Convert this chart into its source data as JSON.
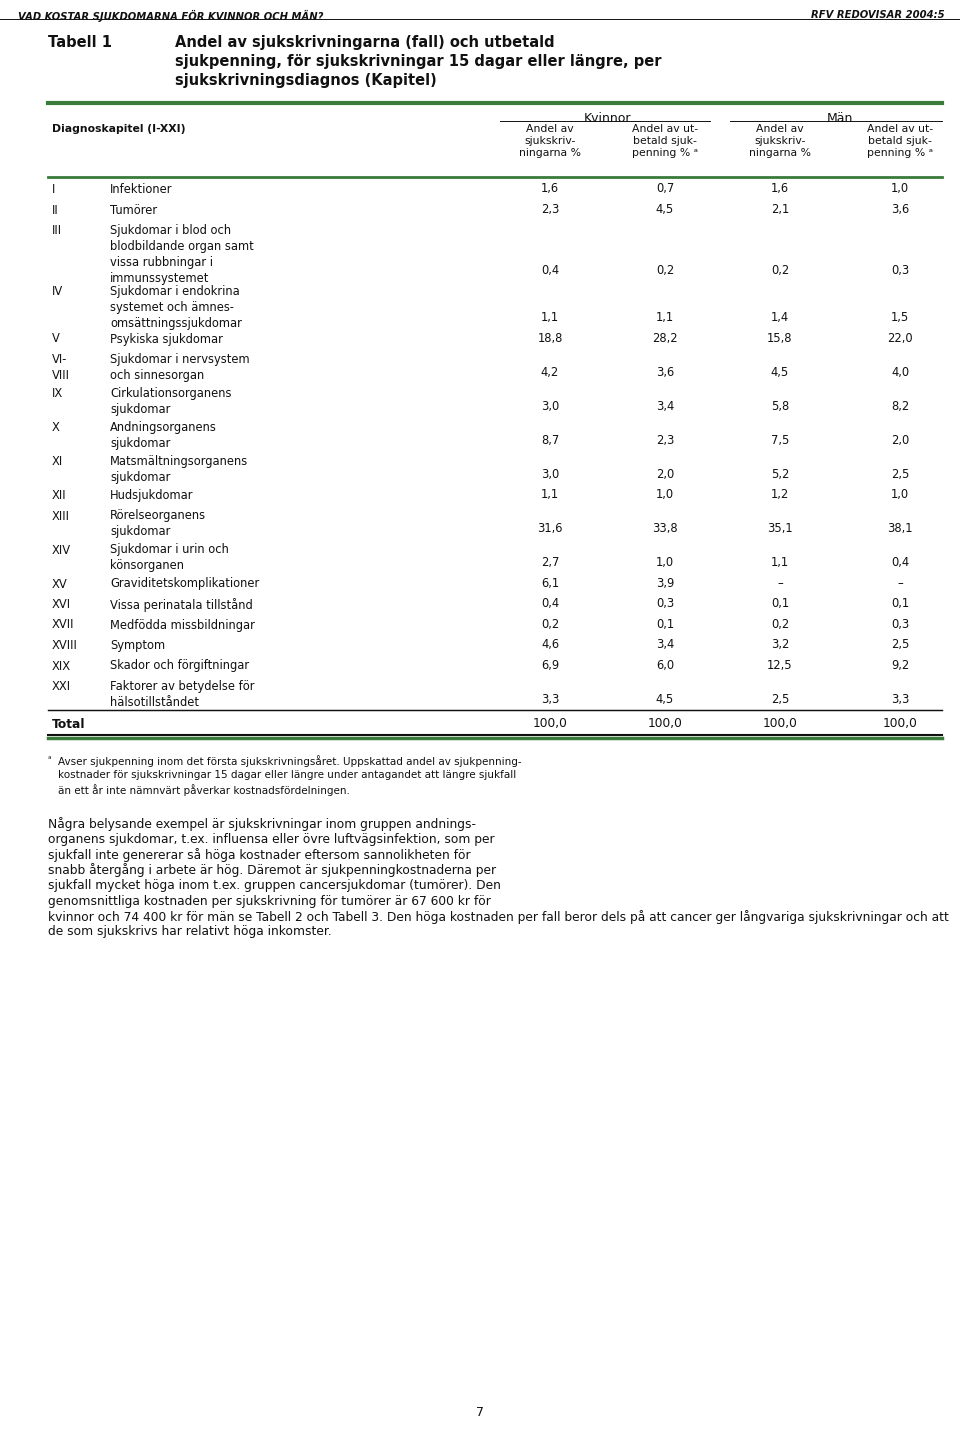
{
  "page_header_left": "VAD KOSTAR SJUKDOMARNA FÖR KVINNOR OCH MÄN?",
  "page_header_right": "RFV REDOVISAR 2004:5",
  "title_label": "Tabell 1",
  "title_text": "Andel av sjukskrivningarna (fall) och utbetald\nsjukpenning, för sjukskrivningar 15 dagar eller längre, per\nsjukskrivningsdiagnos (Kapitel)",
  "col_group1": "Kvinnor",
  "col_group2": "Män",
  "rows": [
    [
      "I",
      "Infektioner",
      "1,6",
      "0,7",
      "1,6",
      "1,0"
    ],
    [
      "II",
      "Tumörer",
      "2,3",
      "4,5",
      "2,1",
      "3,6"
    ],
    [
      "III",
      "Sjukdomar i blod och\nblodbildande organ samt\nvissa rubbningar i\nimmunssystemet",
      "0,4",
      "0,2",
      "0,2",
      "0,3"
    ],
    [
      "IV",
      "Sjukdomar i endokrina\nsystemet och ämnes-\nomsättningssjukdomar",
      "1,1",
      "1,1",
      "1,4",
      "1,5"
    ],
    [
      "V",
      "Psykiska sjukdomar",
      "18,8",
      "28,2",
      "15,8",
      "22,0"
    ],
    [
      "VI-\nVIII",
      "Sjukdomar i nervsystem\noch sinnesorgan",
      "4,2",
      "3,6",
      "4,5",
      "4,0"
    ],
    [
      "IX",
      "Cirkulationsorganens\nsjukdomar",
      "3,0",
      "3,4",
      "5,8",
      "8,2"
    ],
    [
      "X",
      "Andningsorganens\nsjukdomar",
      "8,7",
      "2,3",
      "7,5",
      "2,0"
    ],
    [
      "XI",
      "Matsmältningsorganens\nsjukdomar",
      "3,0",
      "2,0",
      "5,2",
      "2,5"
    ],
    [
      "XII",
      "Hudsjukdomar",
      "1,1",
      "1,0",
      "1,2",
      "1,0"
    ],
    [
      "XIII",
      "Rörelseorganens\nsjukdomar",
      "31,6",
      "33,8",
      "35,1",
      "38,1"
    ],
    [
      "XIV",
      "Sjukdomar i urin och\nkönsorganen",
      "2,7",
      "1,0",
      "1,1",
      "0,4"
    ],
    [
      "XV",
      "Graviditetskomplikationer",
      "6,1",
      "3,9",
      "–",
      "–"
    ],
    [
      "XVI",
      "Vissa perinatala tillstånd",
      "0,4",
      "0,3",
      "0,1",
      "0,1"
    ],
    [
      "XVII",
      "Medfödda missbildningar",
      "0,2",
      "0,1",
      "0,2",
      "0,3"
    ],
    [
      "XVIII",
      "Symptom",
      "4,6",
      "3,4",
      "3,2",
      "2,5"
    ],
    [
      "XIX",
      "Skador och förgiftningar",
      "6,9",
      "6,0",
      "12,5",
      "9,2"
    ],
    [
      "XXI",
      "Faktorer av betydelse för\nhälsotillståndet",
      "3,3",
      "4,5",
      "2,5",
      "3,3"
    ]
  ],
  "footnote_text": "Avser sjukpenning inom det första sjukskrivningsåret. Uppskattad andel av sjukpenning-\nkostnader för sjukskrivningar 15 dagar eller längre under antagandet att längre sjukfall\nän ett år inte nämnvärt påverkar kostnadsfördelningen.",
  "body_text_lines": [
    "Några belysande exempel är sjukskrivningar inom gruppen andnings-",
    "organens sjukdomar, t.ex. influensa eller övre luftvägsinfektion, som per",
    "sjukfall inte genererar så höga kostnader eftersom sannolikheten för",
    "snabb återgång i arbete är hög. Däremot är sjukpenningkostnaderna per",
    "sjukfall mycket höga inom t.ex. gruppen cancersjukdomar (tumörer). Den",
    "genomsnittliga kostnaden per sjukskrivning för tumörer är 67 600 kr för",
    "kvinnor och 74 400 kr för män se Tabell 2 och Tabell 3. Den höga kostnaden per fall beror dels på att cancer ger långvariga sjukskrivningar och att",
    "de som sjukskrivs har relativt höga inkomster."
  ],
  "green_color": "#3a7a3a",
  "dark_color": "#111111",
  "background_color": "#ffffff"
}
